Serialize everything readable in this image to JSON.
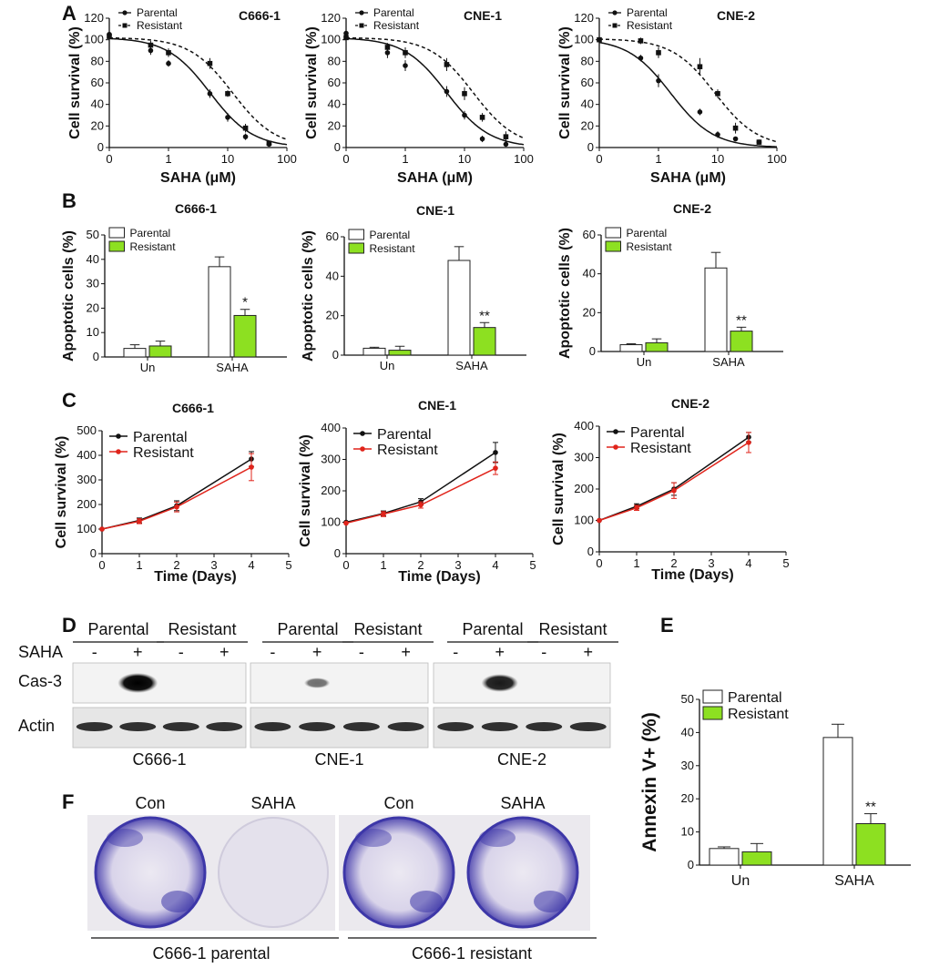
{
  "colors": {
    "resistant_bar": "#8de021",
    "resistant_line": "#e0241b",
    "parental_line": "#111111",
    "stain": "#3d37a8"
  },
  "panel_labels": [
    "A",
    "B",
    "C",
    "D",
    "E",
    "F"
  ],
  "chart_data": [
    {
      "panel": "A",
      "type": "line",
      "xlabel": "SAHA (μM)",
      "ylabel": "Cell survival (%)",
      "xticks": [
        "0",
        "1",
        "10",
        "100"
      ],
      "yticks": [
        "0",
        "20",
        "40",
        "60",
        "80",
        "100",
        "120"
      ],
      "ylim": [
        0,
        120
      ],
      "xscale": "log",
      "xlim_log": [
        -1,
        2
      ],
      "legend": [
        "Parental",
        "Resistant"
      ],
      "subplots": [
        {
          "title": "C666-1",
          "series": [
            {
              "name": "Parental",
              "x": [
                0.1,
                0.5,
                1,
                5,
                10,
                20,
                50
              ],
              "y": [
                105,
                90,
                78,
                50,
                28,
                10,
                3
              ],
              "err": [
                3,
                4,
                3,
                4,
                4,
                3,
                2
              ],
              "fit": {
                "top": 102,
                "ic50": 5
              }
            },
            {
              "name": "Resistant",
              "x": [
                0.1,
                0.5,
                1,
                5,
                10,
                20,
                50
              ],
              "y": [
                103,
                95,
                88,
                78,
                50,
                18,
                4
              ],
              "err": [
                3,
                4,
                4,
                5,
                3,
                4,
                2
              ],
              "fit": {
                "top": 102,
                "ic50": 12
              }
            }
          ]
        },
        {
          "title": "CNE-1",
          "series": [
            {
              "name": "Parental",
              "x": [
                0.1,
                0.5,
                1,
                5,
                10,
                20,
                50
              ],
              "y": [
                106,
                88,
                76,
                52,
                30,
                8,
                3
              ],
              "err": [
                3,
                5,
                5,
                5,
                4,
                3,
                2
              ],
              "fit": {
                "top": 102,
                "ic50": 5
              }
            },
            {
              "name": "Resistant",
              "x": [
                0.1,
                0.5,
                1,
                5,
                10,
                20,
                50
              ],
              "y": [
                102,
                93,
                88,
                77,
                50,
                28,
                10
              ],
              "err": [
                3,
                4,
                5,
                6,
                6,
                4,
                5
              ],
              "fit": {
                "top": 102,
                "ic50": 14
              }
            }
          ]
        },
        {
          "title": "CNE-2",
          "series": [
            {
              "name": "Parental",
              "x": [
                0.1,
                0.5,
                1,
                5,
                10,
                20,
                50
              ],
              "y": [
                100,
                83,
                62,
                33,
                12,
                8,
                5
              ],
              "err": [
                3,
                3,
                6,
                3,
                3,
                2,
                2
              ],
              "fit": {
                "top": 101,
                "ic50": 1.6
              }
            },
            {
              "name": "Resistant",
              "x": [
                0.1,
                0.5,
                1,
                5,
                10,
                20,
                50
              ],
              "y": [
                100,
                99,
                88,
                75,
                50,
                18,
                5
              ],
              "err": [
                3,
                3,
                5,
                8,
                4,
                5,
                2
              ],
              "fit": {
                "top": 101,
                "ic50": 9
              }
            }
          ]
        }
      ]
    },
    {
      "panel": "B",
      "type": "bar",
      "categories": [
        "Un",
        "SAHA"
      ],
      "ylabel": "Apoptotic cells (%)",
      "legend": [
        "Parental",
        "Resistant"
      ],
      "subplots": [
        {
          "title": "C666-1",
          "ylim": [
            0,
            50
          ],
          "yticks": [
            "0",
            "10",
            "20",
            "30",
            "40",
            "50"
          ],
          "series": [
            {
              "name": "Parental",
              "values": [
                3.5,
                37
              ],
              "err": [
                1.5,
                4
              ]
            },
            {
              "name": "Resistant",
              "values": [
                4.5,
                17
              ],
              "err": [
                2,
                2.5
              ]
            }
          ],
          "annotations": [
            "",
            "*"
          ]
        },
        {
          "title": "CNE-1",
          "ylim": [
            0,
            60
          ],
          "yticks": [
            "0",
            "20",
            "40",
            "60"
          ],
          "series": [
            {
              "name": "Parental",
              "values": [
                3.5,
                48
              ],
              "err": [
                0.5,
                7
              ]
            },
            {
              "name": "Resistant",
              "values": [
                2.5,
                14
              ],
              "err": [
                2,
                2.5
              ]
            }
          ],
          "annotations": [
            "",
            "**"
          ]
        },
        {
          "title": "CNE-2",
          "ylim": [
            0,
            60
          ],
          "yticks": [
            "0",
            "20",
            "40",
            "60"
          ],
          "series": [
            {
              "name": "Parental",
              "values": [
                3.5,
                43
              ],
              "err": [
                0.5,
                8
              ]
            },
            {
              "name": "Resistant",
              "values": [
                4.5,
                10.5
              ],
              "err": [
                2,
                2
              ]
            }
          ],
          "annotations": [
            "",
            "**"
          ]
        }
      ]
    },
    {
      "panel": "C",
      "type": "line",
      "xlabel": "Time (Days)",
      "ylabel": "Cell survival (%)",
      "xticks": [
        "0",
        "1",
        "2",
        "3",
        "4",
        "5"
      ],
      "xlim": [
        0,
        5
      ],
      "legend": [
        "Parental",
        "Resistant"
      ],
      "subplots": [
        {
          "title": "C666-1",
          "ylim": [
            0,
            500
          ],
          "yticks": [
            "0",
            "100",
            "200",
            "300",
            "400",
            "500"
          ],
          "series": [
            {
              "name": "Parental",
              "x": [
                0,
                1,
                2,
                4
              ],
              "y": [
                100,
                135,
                195,
                385
              ],
              "err": [
                0,
                10,
                20,
                30
              ]
            },
            {
              "name": "Resistant",
              "x": [
                0,
                1,
                2,
                4
              ],
              "y": [
                100,
                132,
                190,
                352
              ],
              "err": [
                0,
                10,
                20,
                55
              ]
            }
          ]
        },
        {
          "title": "CNE-1",
          "ylim": [
            0,
            400
          ],
          "yticks": [
            "0",
            "100",
            "200",
            "300",
            "400"
          ],
          "series": [
            {
              "name": "Parental",
              "x": [
                0,
                1,
                2,
                4
              ],
              "y": [
                100,
                128,
                165,
                322
              ],
              "err": [
                0,
                8,
                10,
                32
              ]
            },
            {
              "name": "Resistant",
              "x": [
                0,
                1,
                2,
                4
              ],
              "y": [
                97,
                126,
                155,
                272
              ],
              "err": [
                0,
                8,
                10,
                20
              ]
            }
          ]
        },
        {
          "title": "CNE-2",
          "ylim": [
            0,
            400
          ],
          "yticks": [
            "0",
            "100",
            "200",
            "300",
            "400"
          ],
          "series": [
            {
              "name": "Parental",
              "x": [
                0,
                1,
                2,
                4
              ],
              "y": [
                100,
                145,
                200,
                365
              ],
              "err": [
                0,
                8,
                20,
                15
              ]
            },
            {
              "name": "Resistant",
              "x": [
                0,
                1,
                2,
                4
              ],
              "y": [
                100,
                140,
                195,
                348
              ],
              "err": [
                0,
                8,
                25,
                32
              ]
            }
          ]
        }
      ]
    },
    {
      "panel": "E",
      "type": "bar",
      "categories": [
        "Un",
        "SAHA"
      ],
      "ylabel": "Annexin V+ (%)",
      "ylim": [
        0,
        50
      ],
      "yticks": [
        "0",
        "10",
        "20",
        "30",
        "40",
        "50"
      ],
      "legend": [
        "Parental",
        "Resistant"
      ],
      "series": [
        {
          "name": "Parental",
          "values": [
            5,
            38.5
          ],
          "err": [
            0.5,
            4
          ]
        },
        {
          "name": "Resistant",
          "values": [
            4,
            12.5
          ],
          "err": [
            2.5,
            3
          ]
        }
      ],
      "annotations": [
        "",
        "**"
      ]
    }
  ],
  "western_blot": {
    "panel": "D",
    "groups": [
      "Parental",
      "Resistant",
      "Parental",
      "Resistant",
      "Parental",
      "Resistant"
    ],
    "saha_label": "SAHA",
    "lane_signs": [
      "-",
      "+",
      "-",
      "+",
      "-",
      "+",
      "-",
      "+",
      "-",
      "+",
      "-",
      "+"
    ],
    "rows": [
      "Cas-3",
      "Actin"
    ],
    "cell_lines": [
      "C666-1",
      "CNE-1",
      "CNE-2"
    ],
    "cas3_intensity": [
      0,
      1,
      0,
      0,
      0,
      0.35,
      0,
      0,
      0,
      0.85,
      0,
      0
    ]
  },
  "colony_assay": {
    "panel": "F",
    "labels": [
      "Con",
      "SAHA",
      "Con",
      "SAHA"
    ],
    "groups": [
      "C666-1 parental",
      "C666-1 resistant"
    ]
  }
}
